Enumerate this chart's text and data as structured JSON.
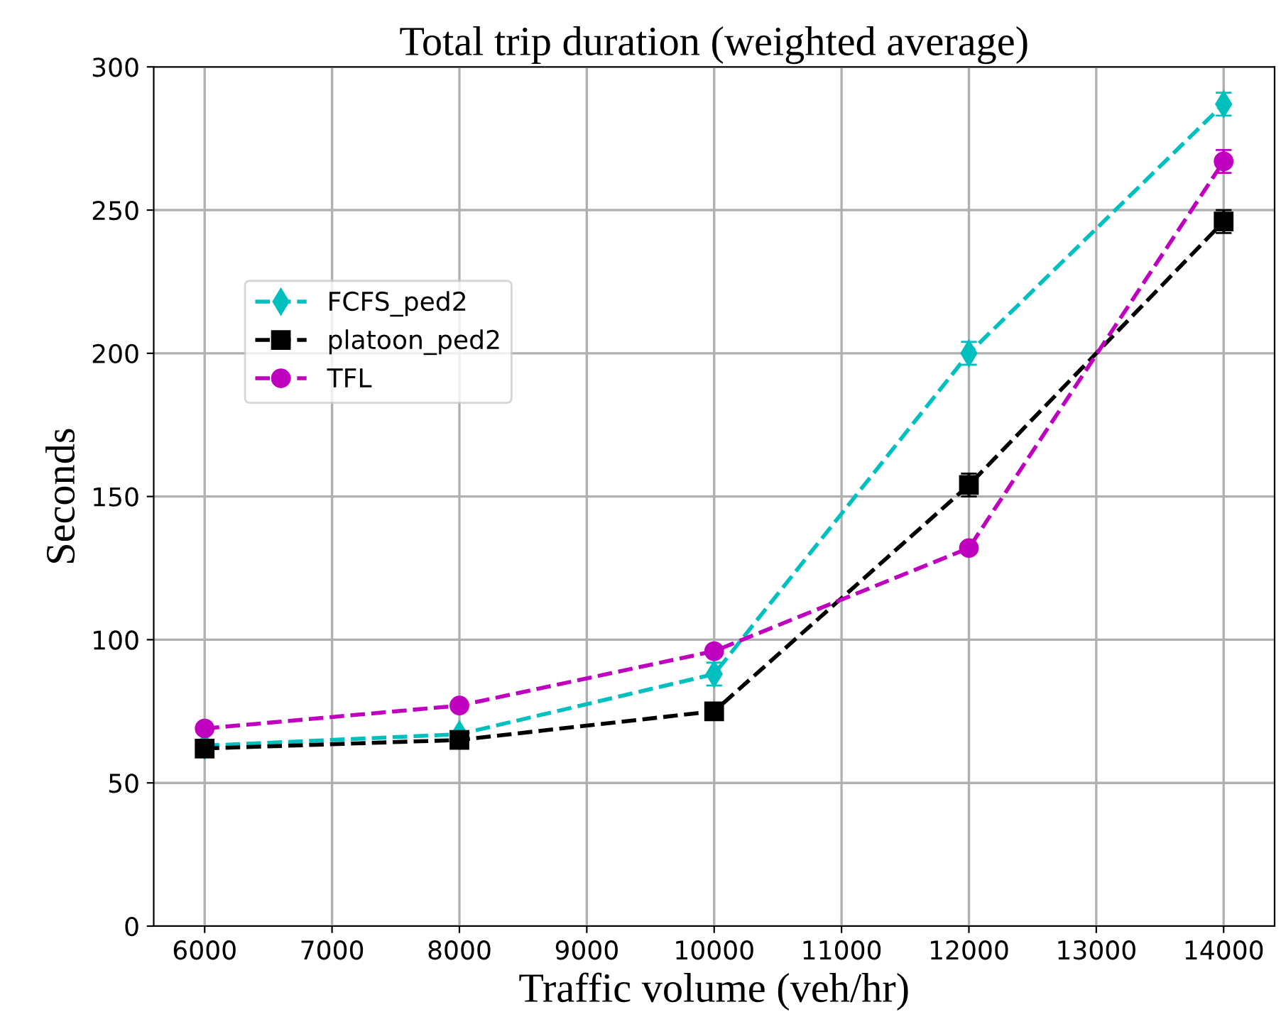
{
  "chart_data": {
    "type": "line",
    "title": "Total trip duration (weighted average)",
    "xlabel": "Traffic volume (veh/hr)",
    "ylabel": "Seconds",
    "x": [
      6000,
      8000,
      10000,
      12000,
      14000
    ],
    "series": [
      {
        "name": "FCFS_ped2",
        "color": "#00bfbf",
        "marker": "diamond",
        "values": [
          63,
          67,
          88,
          200,
          287
        ],
        "errors": [
          null,
          null,
          4,
          4,
          4
        ]
      },
      {
        "name": "platoon_ped2",
        "color": "#000000",
        "marker": "square",
        "values": [
          62,
          65,
          75,
          154,
          246
        ],
        "errors": [
          null,
          null,
          null,
          4,
          4
        ]
      },
      {
        "name": "TFL",
        "color": "#bf00bf",
        "marker": "circle",
        "values": [
          69,
          77,
          96,
          132,
          267
        ],
        "errors": [
          null,
          null,
          null,
          null,
          4
        ]
      }
    ],
    "xlim": [
      5600,
      14400
    ],
    "xticks": [
      6000,
      7000,
      8000,
      9000,
      10000,
      11000,
      12000,
      13000,
      14000
    ],
    "ylim": [
      0,
      300
    ],
    "yticks": [
      0,
      50,
      100,
      150,
      200,
      250,
      300
    ],
    "grid": true,
    "legend": "left",
    "line_style": "dashed"
  }
}
